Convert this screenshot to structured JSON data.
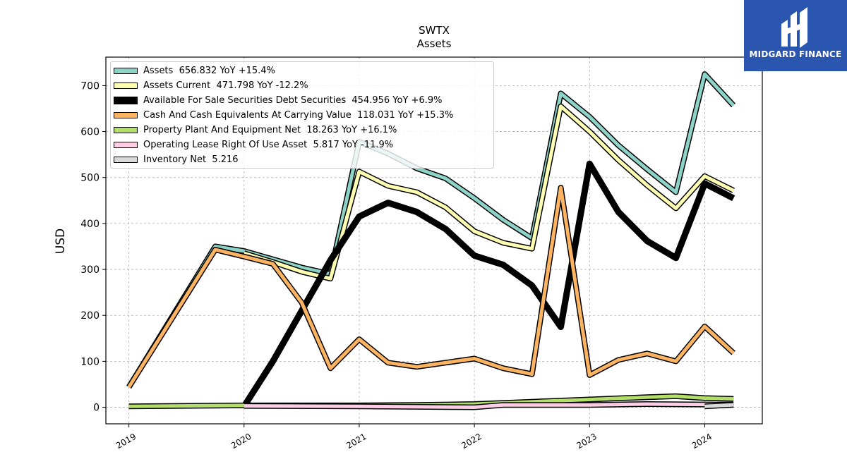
{
  "logo": {
    "text": "MIDGARD FINANCE",
    "background": "#2a56b0"
  },
  "chart_data": {
    "type": "line",
    "title": "SWTX",
    "subtitle": "Assets",
    "xlabel": "",
    "ylabel": "USD",
    "ylim": [
      -36,
      762
    ],
    "xlim": [
      2018.8,
      2024.5
    ],
    "yticks": [
      0,
      100,
      200,
      300,
      400,
      500,
      600,
      700
    ],
    "xticks": [
      2019,
      2020,
      2021,
      2022,
      2023,
      2024
    ],
    "xtick_labels": [
      "2019",
      "2020",
      "2021",
      "2022",
      "2023",
      "2024"
    ],
    "grid": true,
    "legend_position": "top-left",
    "series": [
      {
        "name": "Assets",
        "legend": "Assets  656.832 YoY +15.4%",
        "color": "#8dd3c7",
        "x": [
          2019.0,
          2019.75,
          2020.0,
          2020.25,
          2020.5,
          2020.75,
          2021.0,
          2021.25,
          2021.5,
          2021.75,
          2022.0,
          2022.25,
          2022.5,
          2022.75,
          2023.0,
          2023.25,
          2023.5,
          2023.75,
          2024.0,
          2024.25
        ],
        "y": [
          44,
          350,
          340,
          322,
          304,
          290,
          578,
          552,
          520,
          498,
          455,
          408,
          368,
          683,
          632,
          570,
          518,
          468,
          725,
          656.832
        ]
      },
      {
        "name": "Assets Current",
        "legend": "Assets Current  471.798 YoY -12.2%",
        "color": "#ffffb3",
        "x": [
          2020.0,
          2020.25,
          2020.5,
          2020.75,
          2021.0,
          2021.25,
          2021.5,
          2021.75,
          2022.0,
          2022.25,
          2022.5,
          2022.75,
          2023.0,
          2023.25,
          2023.5,
          2023.75,
          2024.0,
          2024.25
        ],
        "y": [
          335,
          316,
          295,
          280,
          513,
          482,
          468,
          435,
          383,
          358,
          345,
          655,
          600,
          538,
          483,
          433,
          503,
          471.798
        ]
      },
      {
        "name": "Available For Sale Securities Debt Securities",
        "legend": "Available For Sale Securities Debt Securities  454.956 YoY +6.9%",
        "color": "#000000",
        "thick": true,
        "x": [
          2020.0,
          2020.25,
          2020.5,
          2020.75,
          2021.0,
          2021.25,
          2021.5,
          2021.75,
          2022.0,
          2022.25,
          2022.5,
          2022.75,
          2023.0,
          2023.25,
          2023.5,
          2023.75,
          2024.0,
          2024.25
        ],
        "y": [
          2,
          100,
          210,
          320,
          415,
          445,
          425,
          388,
          330,
          310,
          265,
          175,
          530,
          425,
          362,
          325,
          487,
          454.956
        ]
      },
      {
        "name": "Cash And Cash Equivalents At Carrying Value",
        "legend": "Cash And Cash Equivalents At Carrying Value  118.031 YoY +15.3%",
        "color": "#fdb462",
        "x": [
          2019.0,
          2019.75,
          2020.0,
          2020.25,
          2020.5,
          2020.75,
          2021.0,
          2021.25,
          2021.5,
          2021.75,
          2022.0,
          2022.25,
          2022.5,
          2022.75,
          2023.0,
          2023.25,
          2023.5,
          2023.75,
          2024.0,
          2024.25
        ],
        "y": [
          44,
          343,
          328,
          312,
          228,
          85,
          148,
          97,
          88,
          97,
          106,
          85,
          72,
          478,
          70,
          103,
          117,
          100,
          176,
          118.031
        ]
      },
      {
        "name": "Property Plant And Equipment Net",
        "legend": "Property Plant And Equipment Net  18.263 YoY +16.1%",
        "color": "#b3de69",
        "x": [
          2019.0,
          2020.0,
          2021.0,
          2021.5,
          2022.0,
          2022.5,
          2023.0,
          2023.5,
          2023.75,
          2024.0,
          2024.25
        ],
        "y": [
          2,
          4,
          4,
          5,
          7,
          12,
          17,
          22,
          24,
          20,
          18.263
        ]
      },
      {
        "name": "Operating Lease Right Of Use Asset",
        "legend": "Operating Lease Right Of Use Asset  5.817 YoY -11.9%",
        "color": "#fccde5",
        "x": [
          2020.0,
          2021.0,
          2021.5,
          2022.0,
          2022.25,
          2022.5,
          2023.0,
          2023.25,
          2023.5,
          2024.0,
          2024.25
        ],
        "y": [
          3,
          2,
          1,
          0,
          5,
          5,
          5,
          6,
          7,
          6,
          5.817
        ]
      },
      {
        "name": "Inventory Net",
        "legend": "Inventory Net  5.216",
        "color": "#d9d9d9",
        "x": [
          2024.0,
          2024.25
        ],
        "y": [
          2,
          5.216
        ]
      }
    ]
  }
}
